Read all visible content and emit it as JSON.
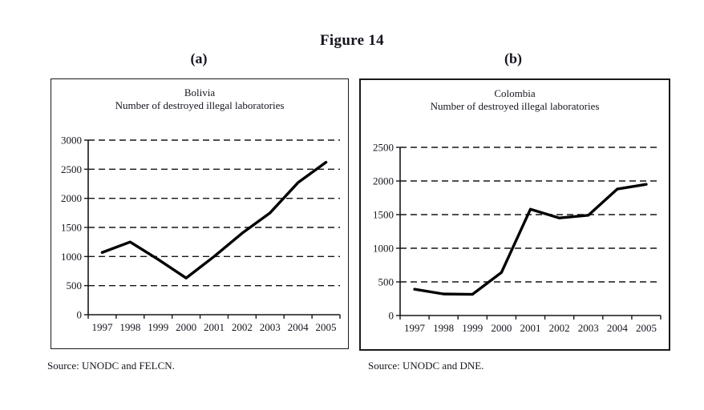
{
  "figure": {
    "title": "Figure 14",
    "panels": [
      {
        "label": "(a)"
      },
      {
        "label": "(b)"
      }
    ]
  },
  "chart_data": [
    {
      "type": "line",
      "panel": "(a)",
      "title": "Bolivia",
      "subtitle": "Number of destroyed illegal laboratories",
      "categories": [
        "1997",
        "1998",
        "1999",
        "2000",
        "2001",
        "2002",
        "2003",
        "2004",
        "2005"
      ],
      "values": [
        1070,
        1250,
        950,
        630,
        1000,
        1400,
        1750,
        2270,
        2620
      ],
      "ylim": [
        0,
        3000
      ],
      "yticks": [
        0,
        500,
        1000,
        1500,
        2000,
        2500,
        3000
      ],
      "grid": "horizontal-dashed",
      "legend": "none",
      "line_color": "#000000",
      "source": "Source: UNODC and FELCN."
    },
    {
      "type": "line",
      "panel": "(b)",
      "title": "Colombia",
      "subtitle": "Number of destroyed illegal laboratories",
      "categories": [
        "1997",
        "1998",
        "1999",
        "2000",
        "2001",
        "2002",
        "2003",
        "2004",
        "2005"
      ],
      "values": [
        390,
        320,
        315,
        640,
        1580,
        1450,
        1490,
        1880,
        1950
      ],
      "ylim": [
        0,
        2500
      ],
      "yticks": [
        0,
        500,
        1000,
        1500,
        2000,
        2500
      ],
      "grid": "horizontal-dashed",
      "legend": "none",
      "line_color": "#000000",
      "source": "Source: UNODC and DNE."
    }
  ]
}
